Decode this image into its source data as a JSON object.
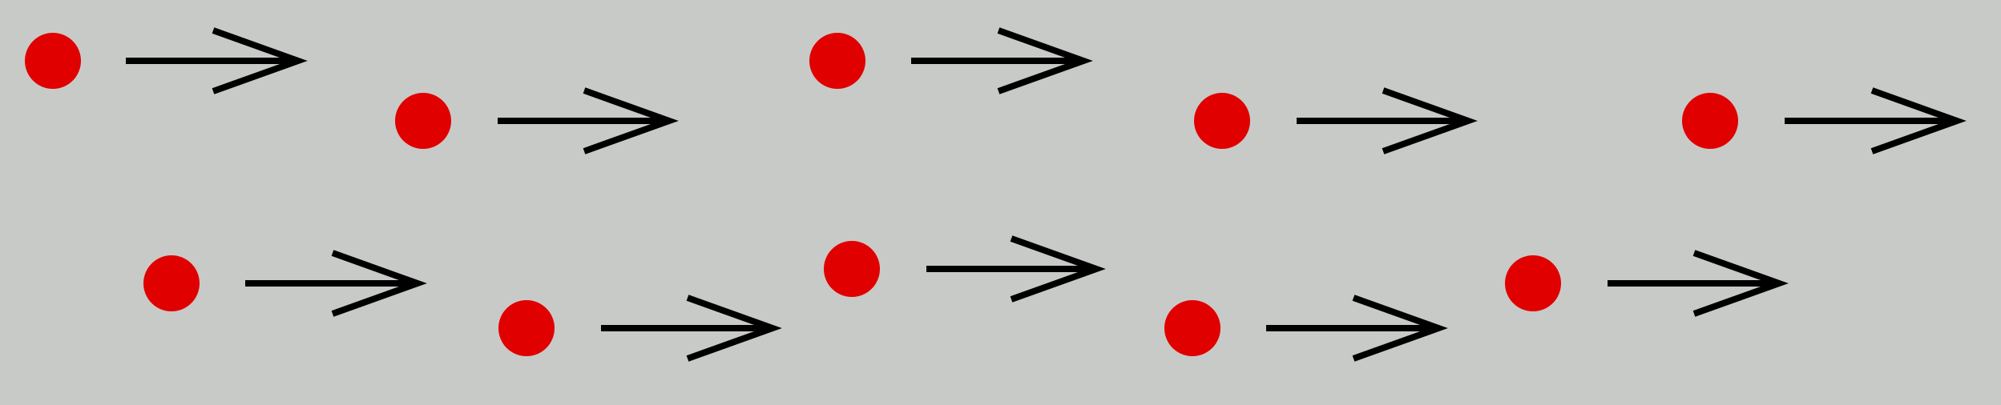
{
  "diagram": {
    "background_color": "#c8cac7",
    "dot_color": "#e00000",
    "arrow_color": "#000000",
    "arrow_direction": "right",
    "rows": [
      {
        "items": 5
      },
      {
        "items": 5
      }
    ]
  }
}
